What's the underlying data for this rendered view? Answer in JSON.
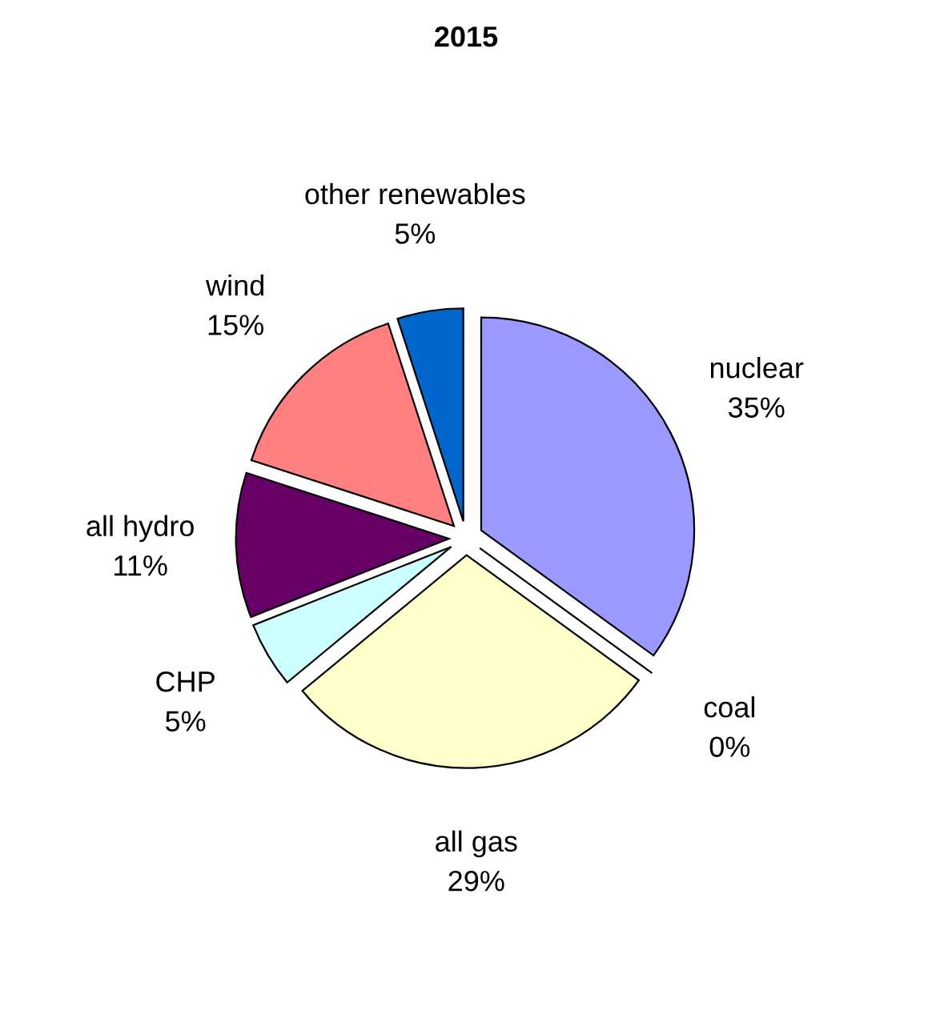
{
  "chart_data": {
    "type": "pie",
    "title": "2015",
    "categories": [
      "nuclear",
      "coal",
      "all gas",
      "CHP",
      "all hydro",
      "wind",
      "other renewables"
    ],
    "values": [
      35,
      0,
      29,
      5,
      11,
      15,
      5
    ],
    "colors": [
      "#9999ff",
      "#ffffff",
      "#ffffcc",
      "#ccffff",
      "#660066",
      "#ff8080",
      "#0066cc"
    ],
    "value_labels": [
      "35%",
      "0%",
      "29%",
      "5%",
      "11%",
      "15%",
      "5%"
    ]
  }
}
